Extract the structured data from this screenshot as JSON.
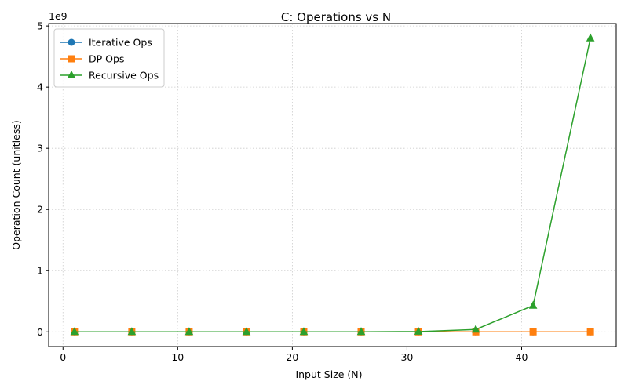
{
  "chart_data": {
    "type": "line",
    "title": "C: Operations vs N",
    "xlabel": "Input Size (N)",
    "ylabel": "Operation Count (unitless)",
    "y_scale_label": "1e9",
    "xlim": [
      -1.25,
      48.25
    ],
    "ylim": [
      -0.24,
      5.04
    ],
    "y_units_multiplier": 1000000000,
    "x_ticks": [
      0,
      10,
      20,
      30,
      40
    ],
    "y_ticks": [
      0,
      1,
      2,
      3,
      4,
      5
    ],
    "grid": true,
    "legend_position": "top-left",
    "x": [
      1,
      6,
      11,
      16,
      21,
      26,
      31,
      36,
      41,
      46
    ],
    "series": [
      {
        "name": "Iterative Ops",
        "color": "#1f77b4",
        "marker": "circle",
        "values": [
          0,
          0,
          0,
          0,
          0,
          0,
          0,
          0,
          0,
          0
        ]
      },
      {
        "name": "DP Ops",
        "color": "#ff7f0e",
        "marker": "square",
        "values": [
          0,
          0,
          0,
          0,
          0,
          0,
          0,
          0,
          0,
          0
        ]
      },
      {
        "name": "Recursive Ops",
        "color": "#2ca02c",
        "marker": "triangle",
        "values": [
          0,
          0,
          0,
          0,
          0,
          0.0005,
          0.0043,
          0.039,
          0.43,
          4.8
        ]
      }
    ]
  }
}
